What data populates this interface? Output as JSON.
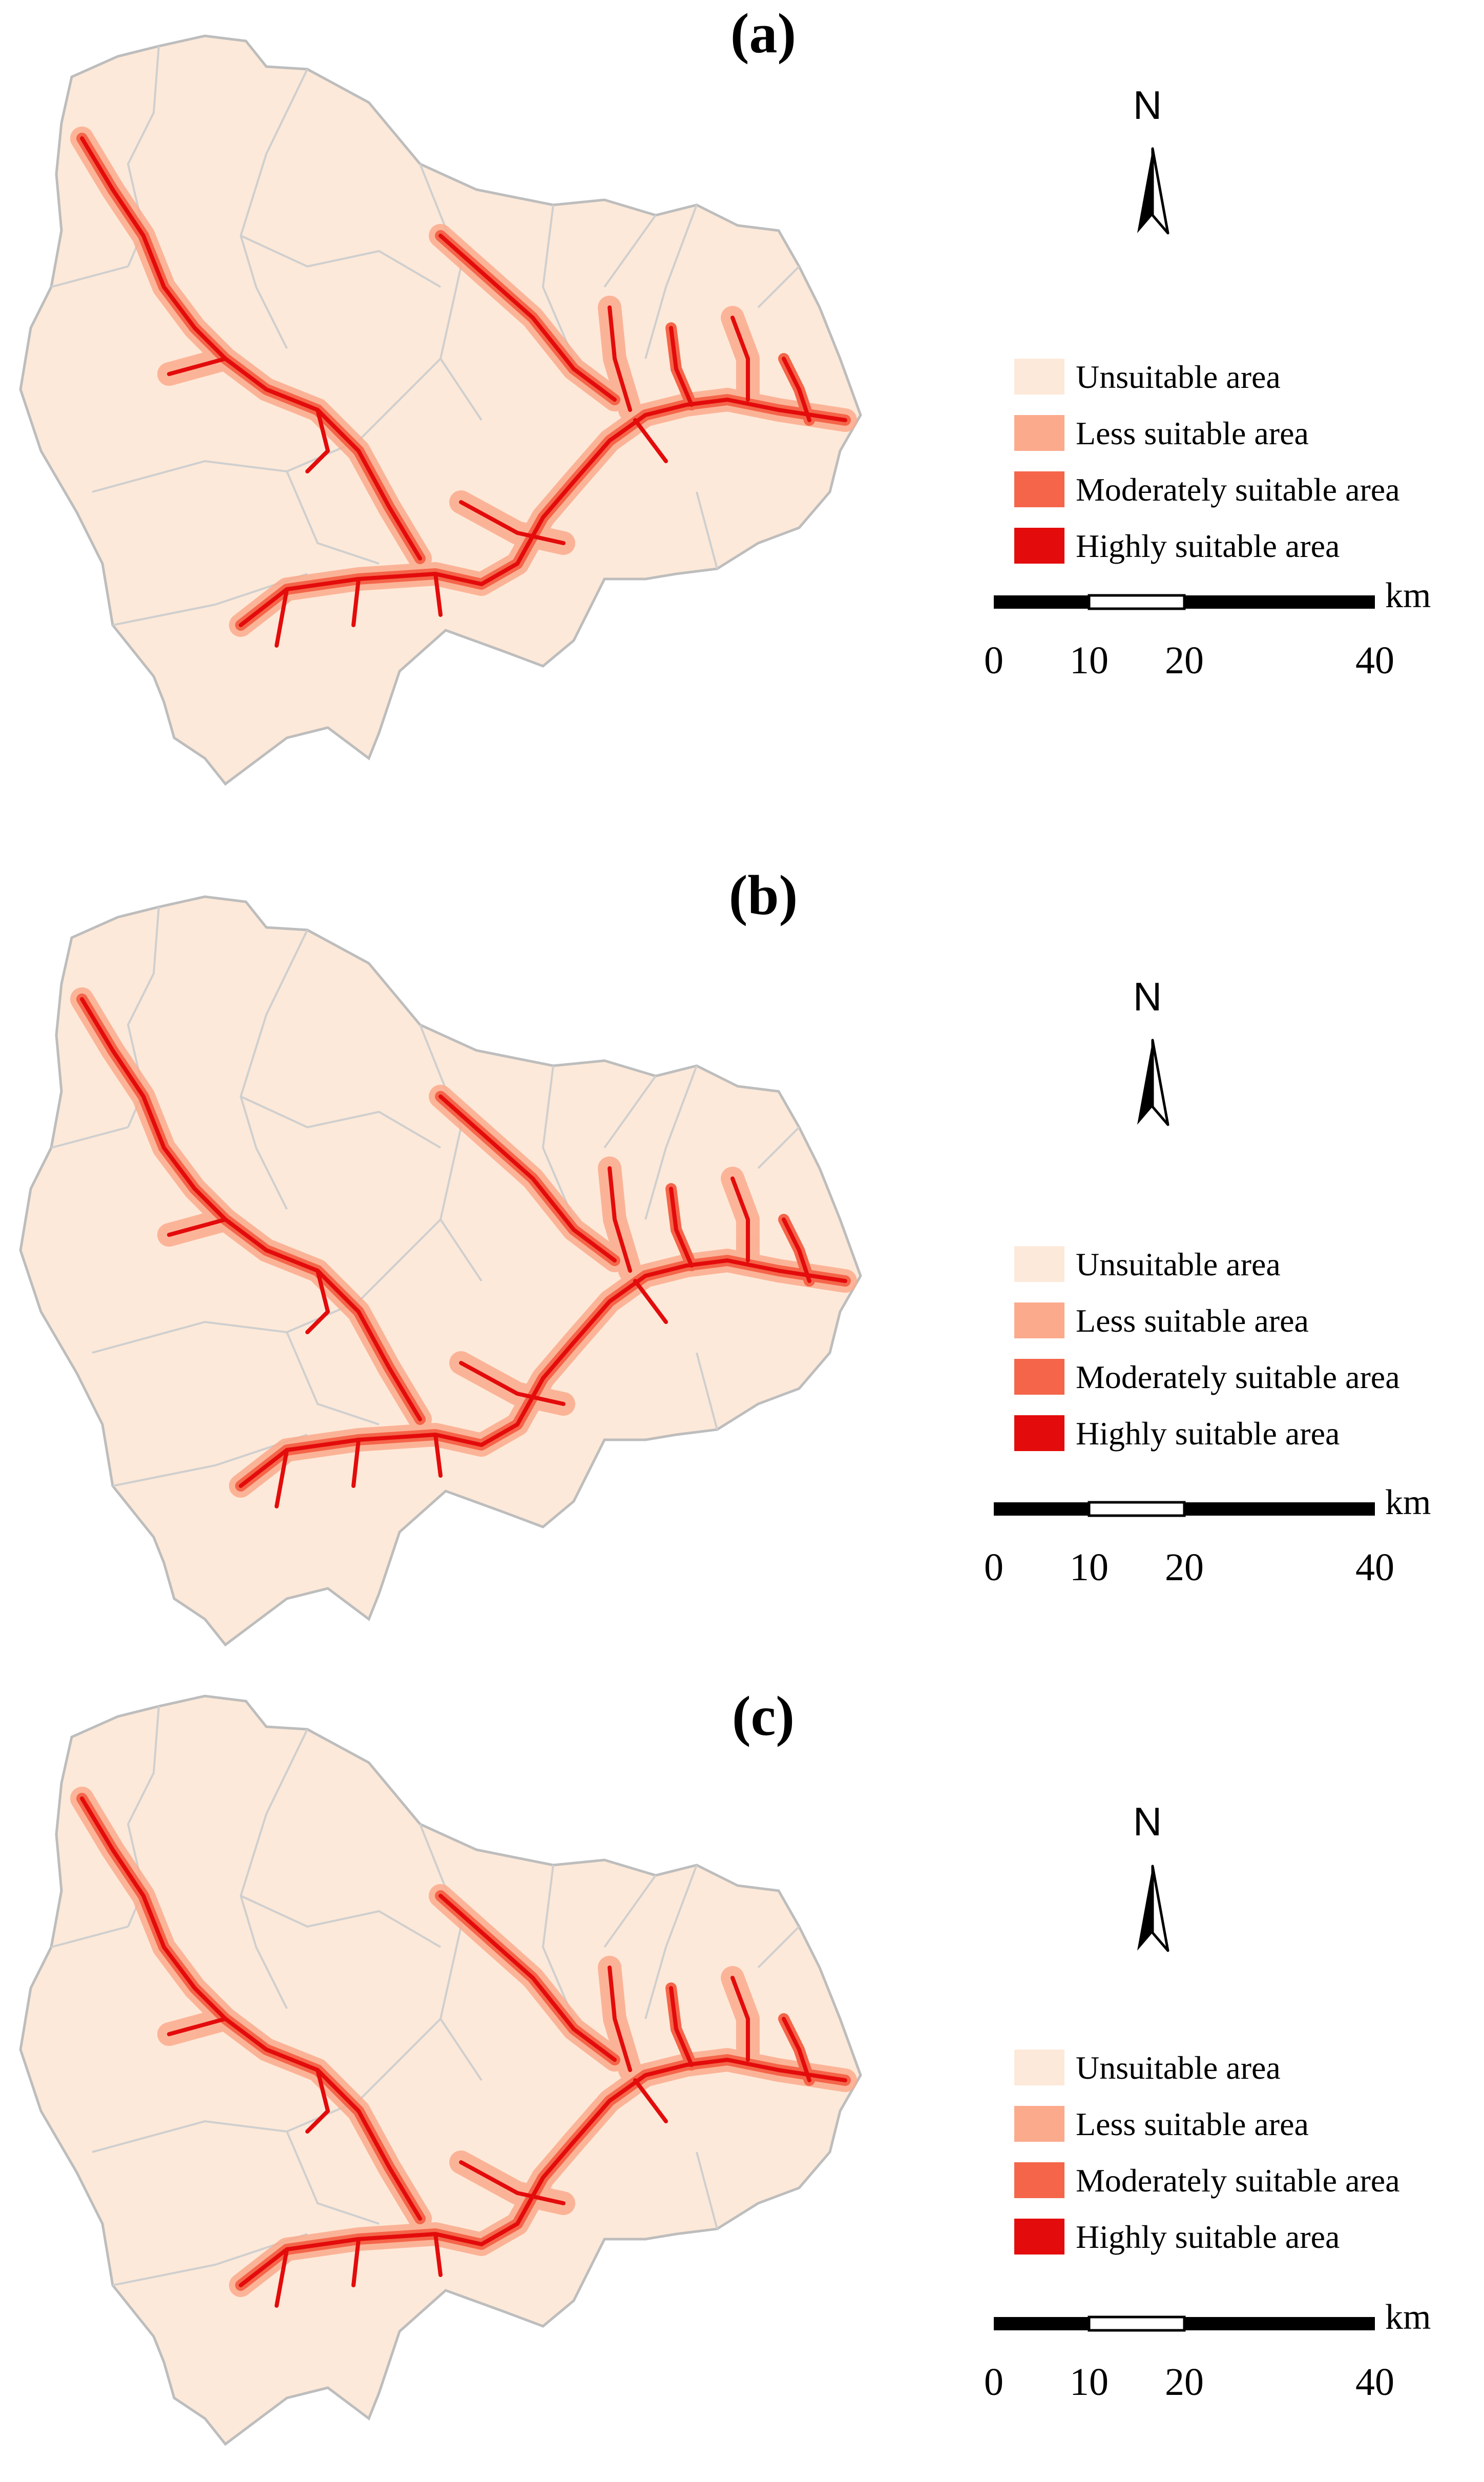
{
  "panels": [
    {
      "label": "(a)"
    },
    {
      "label": "(b)"
    },
    {
      "label": "(c)"
    }
  ],
  "north_arrow": {
    "letter": "N"
  },
  "legend": {
    "items": [
      {
        "label": "Unsuitable area",
        "color": "#fde9d9"
      },
      {
        "label": "Less suitable area",
        "color": "#fbaa8c"
      },
      {
        "label": "Moderately suitable area",
        "color": "#f4654a"
      },
      {
        "label": "Highly suitable area",
        "color": "#e30b0b"
      }
    ]
  },
  "scale_bar": {
    "unit": "km",
    "ticks": [
      "0",
      "10",
      "20",
      "40"
    ]
  },
  "colors": {
    "basin_fill": "#fde9d9",
    "basin_outline": "#bdbdbd",
    "sub_boundaries": "#cfcfcf",
    "river_core": "#e30b0b",
    "river_mid": "#f4654a",
    "river_halo": "#fbaa8c"
  }
}
